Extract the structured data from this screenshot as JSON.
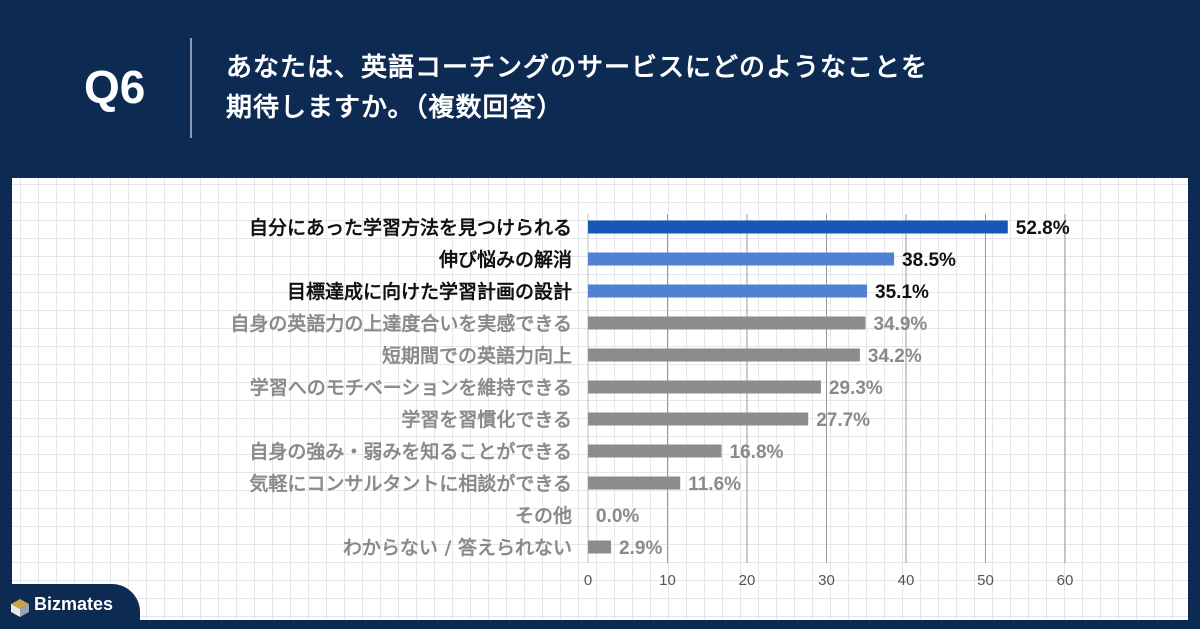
{
  "header": {
    "q_label": "Q6",
    "question_line1": "あなたは、英語コーチングのサービスにどのようなことを",
    "question_line2": "期待しますか。（複数回答）"
  },
  "brand": {
    "name": "Bizmates"
  },
  "colors": {
    "background": "#0d2a52",
    "highlight_dark": "#1a56b5",
    "highlight_light": "#4f82d2",
    "muted": "#8c8c8c",
    "label_dark": "#111111",
    "label_muted": "#8a8a8a"
  },
  "chart_data": {
    "type": "bar",
    "orientation": "horizontal",
    "categories": [
      "自分にあった学習方法を見つけられる",
      "伸び悩みの解消",
      "目標達成に向けた学習計画の設計",
      "自身の英語力の上達度合いを実感できる",
      "短期間での英語力向上",
      "学習へのモチベーションを維持できる",
      "学習を習慣化できる",
      "自身の強み・弱みを知ることができる",
      "気軽にコンサルタントに相談ができる",
      "その他",
      "わからない / 答えられない"
    ],
    "values": [
      52.8,
      38.5,
      35.1,
      34.9,
      34.2,
      29.3,
      27.7,
      16.8,
      11.6,
      0.0,
      2.9
    ],
    "value_labels": [
      "52.8%",
      "38.5%",
      "35.1%",
      "34.9%",
      "34.2%",
      "29.3%",
      "27.7%",
      "16.8%",
      "11.6%",
      "0.0%",
      "2.9%"
    ],
    "highlight": [
      "dark",
      "light",
      "light",
      "muted",
      "muted",
      "muted",
      "muted",
      "muted",
      "muted",
      "muted",
      "muted"
    ],
    "xlim": [
      0,
      60
    ],
    "xticks": [
      "0",
      "10",
      "20",
      "30",
      "40",
      "50",
      "60"
    ],
    "grid": true
  }
}
